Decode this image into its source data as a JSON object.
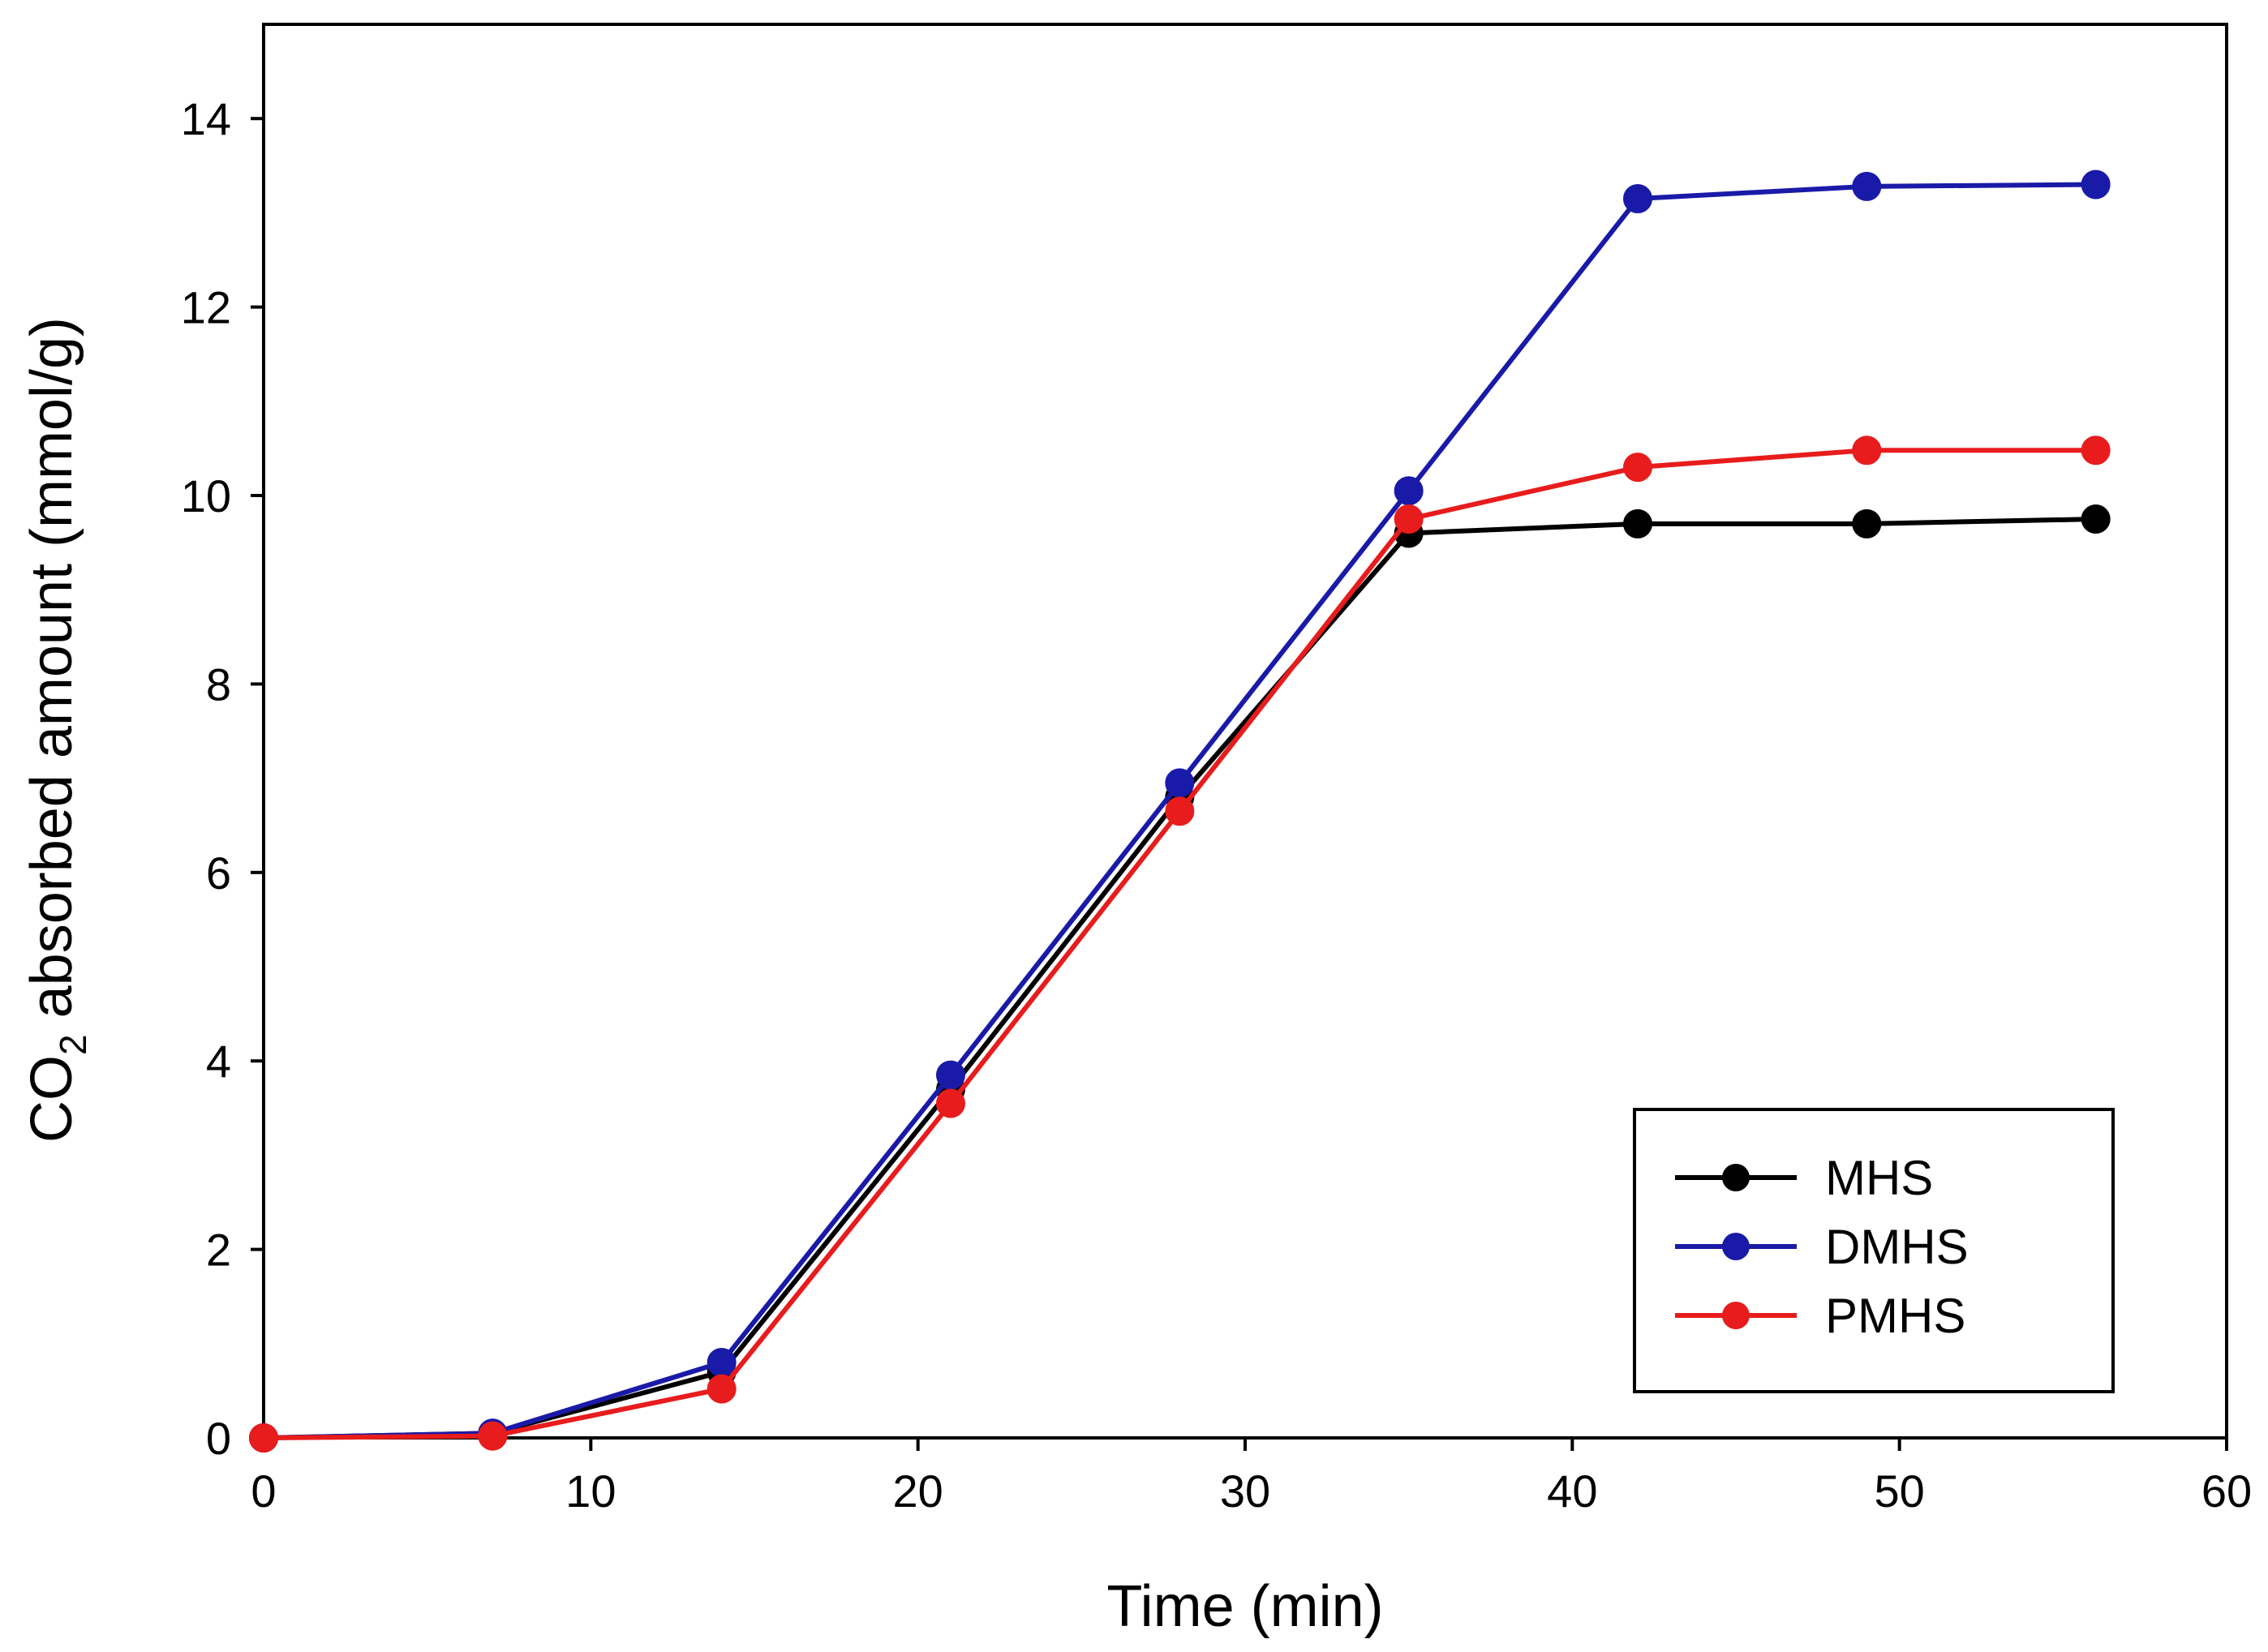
{
  "chart_data": {
    "type": "line",
    "title": "",
    "xlabel": "Time (min)",
    "ylabel_parts": {
      "main": "CO",
      "sub": "2",
      "rest": " absorbed amount (mmol/g)"
    },
    "xlim": [
      0,
      60
    ],
    "ylim": [
      0,
      15
    ],
    "xticks": [
      0,
      10,
      20,
      30,
      40,
      50,
      60
    ],
    "yticks": [
      0,
      2,
      4,
      6,
      8,
      10,
      12,
      14
    ],
    "grid": false,
    "legend_position": "bottom-right",
    "x": [
      0,
      7,
      14,
      21,
      28,
      35,
      42,
      49,
      56
    ],
    "series": [
      {
        "name": "MHS",
        "color": "#000000",
        "values": [
          0,
          0.05,
          0.7,
          3.7,
          6.8,
          9.6,
          9.7,
          9.7,
          9.75
        ]
      },
      {
        "name": "DMHS",
        "color": "#1a1aa8",
        "values": [
          0,
          0.05,
          0.8,
          3.85,
          6.95,
          10.05,
          13.15,
          13.28,
          13.3
        ]
      },
      {
        "name": "PMHS",
        "color": "#e81c1c",
        "values": [
          0,
          0.02,
          0.52,
          3.55,
          6.65,
          9.75,
          10.3,
          10.48,
          10.48
        ]
      }
    ]
  }
}
